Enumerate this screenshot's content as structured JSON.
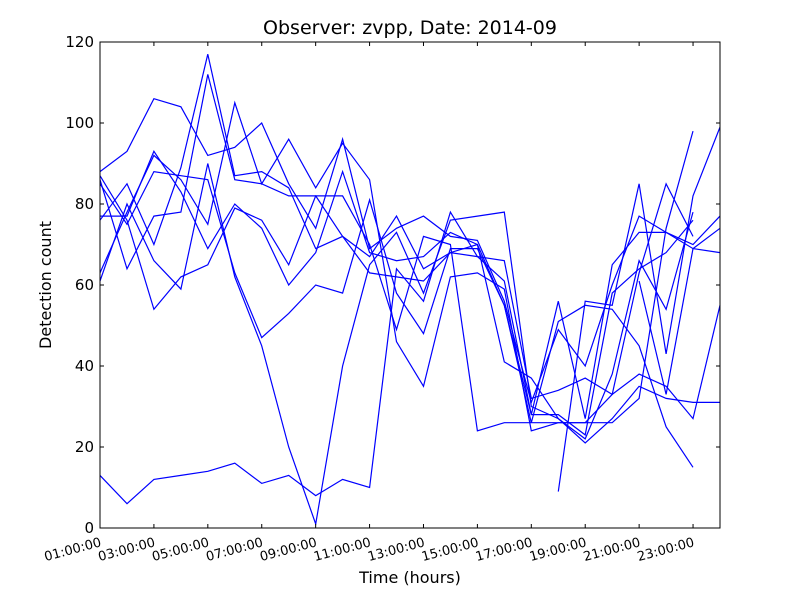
{
  "chart_data": {
    "type": "line",
    "title": "Observer: zvpp, Date: 2014-09",
    "xlabel": "Time (hours)",
    "ylabel": "Detection count",
    "xlim": [
      1,
      24
    ],
    "ylim": [
      0,
      120
    ],
    "x_ticks": [
      1,
      3,
      5,
      7,
      9,
      11,
      13,
      15,
      17,
      19,
      21,
      23
    ],
    "x_tick_labels": [
      "01:00:00",
      "03:00:00",
      "05:00:00",
      "07:00:00",
      "09:00:00",
      "11:00:00",
      "13:00:00",
      "15:00:00",
      "17:00:00",
      "19:00:00",
      "21:00:00",
      "23:00:00"
    ],
    "y_ticks": [
      0,
      20,
      40,
      60,
      80,
      100,
      120
    ],
    "y_tick_labels": [
      "0",
      "20",
      "40",
      "60",
      "80",
      "100",
      "120"
    ],
    "grid": false,
    "line_color": "#0000ff",
    "x": [
      1,
      2,
      3,
      4,
      5,
      6,
      7,
      8,
      9,
      10,
      11,
      12,
      13,
      14,
      15,
      16,
      17,
      18,
      19,
      20,
      21,
      22,
      23,
      24
    ],
    "series": [
      {
        "values": [
          13,
          6,
          12,
          13,
          14,
          16,
          11,
          13,
          8,
          12,
          10,
          64,
          56,
          78,
          67,
          66,
          32,
          34,
          37,
          33,
          38,
          35,
          27,
          55
        ]
      },
      {
        "values": [
          88,
          93,
          106,
          104,
          92,
          94,
          100,
          85,
          74,
          96,
          69,
          74,
          77,
          72,
          71,
          56,
          31,
          49,
          40,
          60,
          77,
          73,
          69,
          68
        ]
      },
      {
        "values": [
          86,
          64,
          77,
          78,
          112,
          86,
          85,
          82,
          82,
          72,
          67,
          77,
          64,
          68,
          67,
          61,
          28,
          56,
          27,
          65,
          73,
          73,
          70,
          77
        ]
      },
      {
        "values": [
          76,
          85,
          70,
          89,
          117,
          87,
          88,
          84,
          69,
          72,
          63,
          62,
          61,
          68,
          70,
          55,
          26,
          51,
          55,
          54,
          45,
          25,
          15,
          null
        ]
      },
      {
        "values": [
          77,
          77,
          93,
          83,
          69,
          80,
          74,
          60,
          68,
          88,
          68,
          66,
          67,
          73,
          70,
          41,
          37,
          27,
          21,
          27,
          35,
          32,
          31,
          31
        ]
      },
      {
        "values": [
          63,
          78,
          92,
          86,
          75,
          105,
          85,
          96,
          84,
          95,
          86,
          46,
          35,
          62,
          63,
          59,
          24,
          26,
          26,
          26,
          32,
          74,
          98,
          null
        ]
      },
      {
        "values": [
          61,
          80,
          66,
          59,
          90,
          62,
          45,
          20,
          1,
          40,
          65,
          73,
          58,
          76,
          77,
          78,
          30,
          27,
          22,
          38,
          66,
          54,
          78,
          null
        ]
      },
      {
        "values": [
          87,
          76,
          54,
          62,
          65,
          79,
          76,
          65,
          82,
          82,
          70,
          49,
          72,
          70,
          24,
          26,
          26,
          26,
          26,
          33,
          63,
          85,
          72,
          null
        ]
      },
      {
        "values": [
          85,
          75,
          88,
          87,
          86,
          63,
          47,
          53,
          60,
          58,
          81,
          58,
          48,
          69,
          69,
          55,
          28,
          28,
          23,
          58,
          64,
          68,
          76,
          null
        ]
      },
      {
        "values": [
          null,
          null,
          null,
          null,
          null,
          null,
          null,
          null,
          null,
          null,
          null,
          null,
          null,
          null,
          null,
          null,
          null,
          9,
          56,
          55,
          85,
          43,
          82,
          99
        ]
      },
      {
        "values": [
          null,
          null,
          null,
          null,
          null,
          null,
          null,
          null,
          null,
          null,
          null,
          null,
          null,
          null,
          null,
          null,
          null,
          null,
          null,
          null,
          61,
          33,
          69,
          74
        ]
      }
    ]
  }
}
